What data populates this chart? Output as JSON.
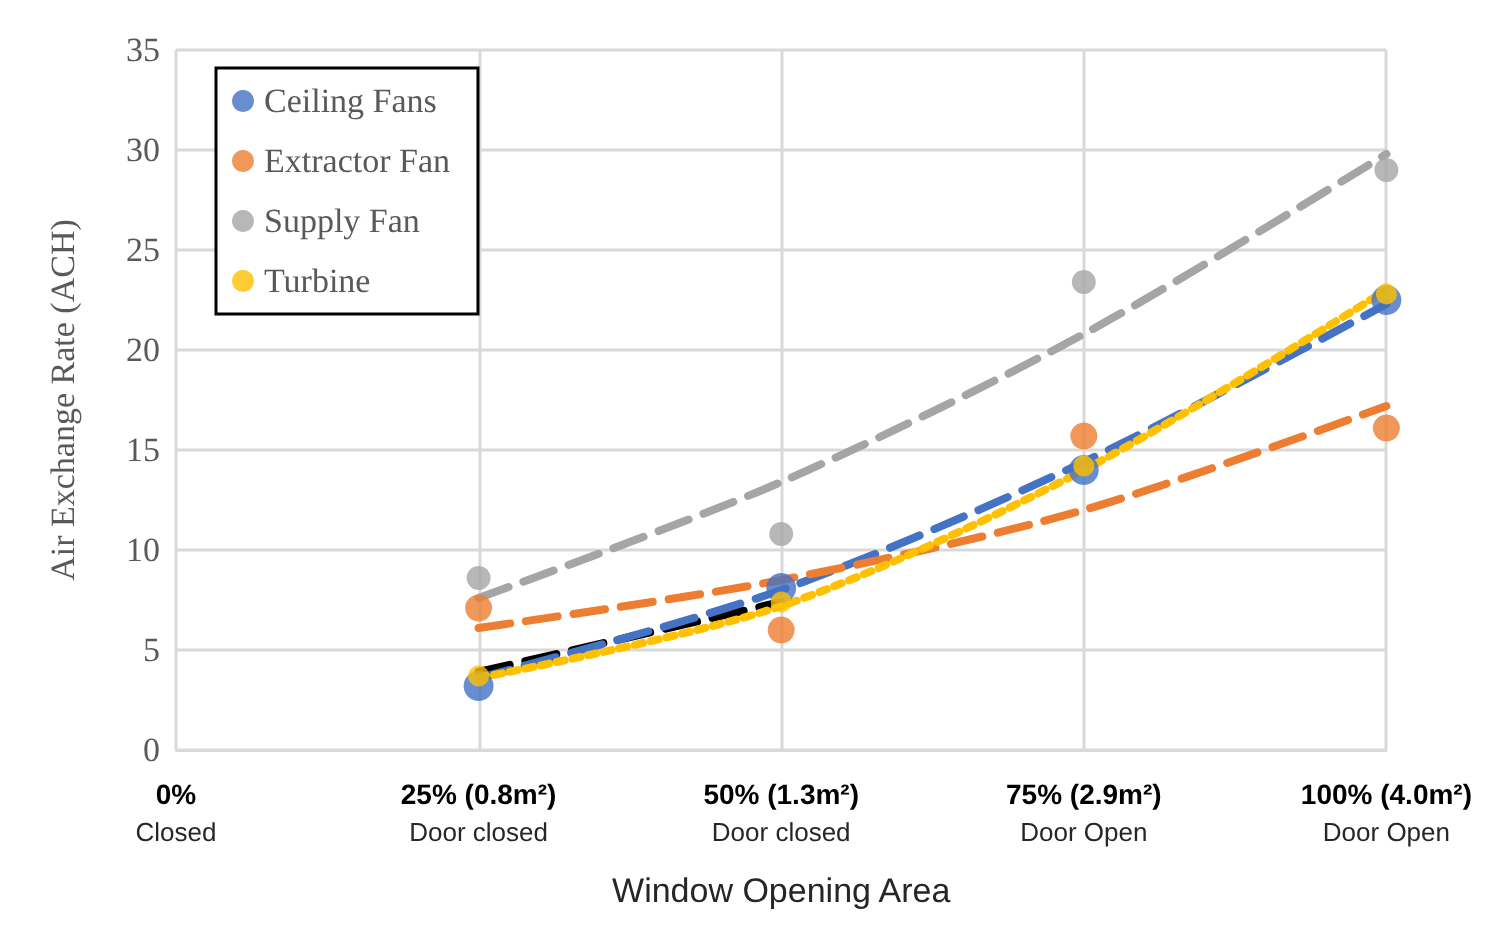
{
  "chart_data": {
    "type": "scatter",
    "xlabel": "Window Opening Area",
    "ylabel": "Air Exchange Rate (ACH)",
    "categories": [
      "0%\nClosed",
      "25% (0.8m²)\nDoor closed",
      "50% (1.3m²)\nDoor closed",
      "75% (2.9m²)\nDoor Open",
      "100% (4.0m²)\nDoor Open"
    ],
    "series": [
      {
        "name": "Ceiling Fans",
        "color": "#4472c4",
        "marker": "circle",
        "values": [
          null,
          3.2,
          8.1,
          14.0,
          22.5
        ]
      },
      {
        "name": "Extractor Fan",
        "color": "#ed7d31",
        "marker": "circle",
        "values": [
          null,
          7.1,
          6.0,
          15.7,
          16.1
        ]
      },
      {
        "name": "Supply Fan",
        "color": "#a5a5a5",
        "marker": "circle",
        "values": [
          null,
          8.6,
          10.8,
          23.4,
          29.0
        ]
      },
      {
        "name": "Turbine",
        "color": "#ffc000",
        "marker": "circle",
        "values": [
          null,
          3.7,
          7.4,
          14.2,
          22.8
        ]
      },
      {
        "type": "line",
        "color": "#000000",
        "line_style": "dashed",
        "values": [
          null,
          3.9,
          7.4,
          null,
          null
        ]
      },
      {
        "type": "line",
        "color": "#4472c4",
        "line_style": "dashed",
        "values": [
          null,
          3.6,
          8.0,
          14.4,
          22.3
        ]
      },
      {
        "type": "line",
        "color": "#ed7d31",
        "line_style": "dashed",
        "values": [
          null,
          6.1,
          8.5,
          12.0,
          17.2
        ]
      },
      {
        "type": "line",
        "color": "#a5a5a5",
        "line_style": "dashed",
        "values": [
          null,
          7.6,
          13.4,
          20.8,
          29.8
        ]
      },
      {
        "type": "line",
        "color": "#ffc000",
        "line_style": "dotted",
        "values": [
          null,
          3.6,
          7.2,
          14.0,
          23.0
        ]
      }
    ],
    "ylim": [
      0,
      35
    ],
    "yticks": [
      0,
      5,
      10,
      15,
      20,
      25,
      30,
      35
    ],
    "grid": true,
    "legend": "top left"
  }
}
